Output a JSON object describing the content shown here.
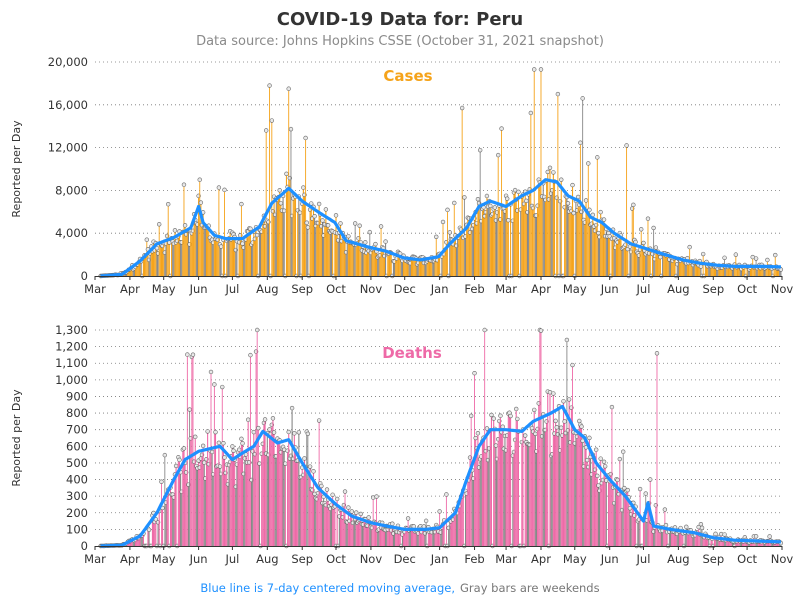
{
  "title": "COVID-19 Data for: Peru",
  "subtitle": "Data source: Johns Hopkins CSSE (October 31, 2021 snapshot)",
  "footnote": {
    "blue_part": "Blue line is 7-day centered moving average,",
    "gray_part": "Gray bars are weekends"
  },
  "colors": {
    "cases_bar": "#f5a31a",
    "deaths_bar": "#ee6aa7",
    "weekend_bar": "#888888",
    "moving_avg": "#1e90ff",
    "cases_title": "#f5a31a",
    "deaths_title": "#ee6aa7"
  },
  "chart_data": [
    {
      "type": "bar",
      "panel": "Cases",
      "ylabel": "Reported per Day",
      "ylim": [
        0,
        20000
      ],
      "yticks": [
        "0",
        "4,000",
        "8,000",
        "12,000",
        "16,000",
        "20,000"
      ],
      "x_tick_labels": [
        "Mar",
        "Apr",
        "May",
        "Jun",
        "Jul",
        "Aug",
        "Sep",
        "Oct",
        "Nov",
        "Dec",
        "Jan",
        "Feb",
        "Mar",
        "Apr",
        "May",
        "Jun",
        "Jul",
        "Aug",
        "Sep",
        "Oct",
        "Nov"
      ],
      "date_range": [
        "2020-03-06",
        "2021-10-31"
      ],
      "moving_average_anchors": [
        [
          "2020-03-06",
          0
        ],
        [
          "2020-03-25",
          150
        ],
        [
          "2020-04-10",
          1400
        ],
        [
          "2020-04-25",
          3000
        ],
        [
          "2020-05-10",
          3600
        ],
        [
          "2020-05-25",
          4500
        ],
        [
          "2020-06-01",
          6500
        ],
        [
          "2020-06-05",
          5000
        ],
        [
          "2020-06-15",
          3800
        ],
        [
          "2020-06-25",
          3500
        ],
        [
          "2020-07-10",
          3500
        ],
        [
          "2020-07-25",
          4600
        ],
        [
          "2020-08-05",
          6800
        ],
        [
          "2020-08-20",
          8200
        ],
        [
          "2020-09-01",
          7000
        ],
        [
          "2020-09-15",
          6000
        ],
        [
          "2020-09-30",
          5000
        ],
        [
          "2020-10-10",
          3300
        ],
        [
          "2020-10-30",
          2700
        ],
        [
          "2020-11-15",
          2300
        ],
        [
          "2020-11-30",
          1700
        ],
        [
          "2020-12-15",
          1500
        ],
        [
          "2020-12-31",
          1800
        ],
        [
          "2021-01-10",
          3000
        ],
        [
          "2021-01-25",
          4500
        ],
        [
          "2021-02-05",
          6500
        ],
        [
          "2021-02-15",
          7000
        ],
        [
          "2021-03-01",
          6500
        ],
        [
          "2021-03-15",
          7500
        ],
        [
          "2021-03-25",
          8000
        ],
        [
          "2021-04-05",
          9000
        ],
        [
          "2021-04-15",
          8800
        ],
        [
          "2021-04-25",
          7500
        ],
        [
          "2021-05-05",
          7000
        ],
        [
          "2021-05-15",
          5500
        ],
        [
          "2021-05-25",
          5000
        ],
        [
          "2021-06-05",
          4000
        ],
        [
          "2021-06-20",
          3000
        ],
        [
          "2021-07-05",
          2500
        ],
        [
          "2021-07-20",
          2000
        ],
        [
          "2021-08-05",
          1500
        ],
        [
          "2021-08-20",
          1200
        ],
        [
          "2021-09-05",
          1000
        ],
        [
          "2021-09-20",
          900
        ],
        [
          "2021-10-15",
          900
        ],
        [
          "2021-10-31",
          850
        ]
      ],
      "notable_daily_values": [
        [
          "2020-06-02",
          9000
        ],
        [
          "2020-07-31",
          13600
        ],
        [
          "2020-08-03",
          17800
        ],
        [
          "2020-09-04",
          12900
        ],
        [
          "2021-01-21",
          15700
        ],
        [
          "2021-03-26",
          19300
        ],
        [
          "2021-04-01",
          19300
        ],
        [
          "2021-04-16",
          17000
        ],
        [
          "2021-05-08",
          16600
        ],
        [
          "2021-06-16",
          12200
        ]
      ]
    },
    {
      "type": "bar",
      "panel": "Deaths",
      "ylabel": "Reported per Day",
      "ylim": [
        0,
        1300
      ],
      "yticks": [
        "0",
        "100",
        "200",
        "300",
        "400",
        "500",
        "600",
        "700",
        "800",
        "900",
        "1,000",
        "1,100",
        "1,200",
        "1,300"
      ],
      "x_tick_labels": [
        "Mar",
        "Apr",
        "May",
        "Jun",
        "Jul",
        "Aug",
        "Sep",
        "Oct",
        "Nov",
        "Dec",
        "Jan",
        "Feb",
        "Mar",
        "Apr",
        "May",
        "Jun",
        "Jul",
        "Aug",
        "Sep",
        "Oct",
        "Nov"
      ],
      "date_range": [
        "2020-03-06",
        "2021-10-31"
      ],
      "moving_average_anchors": [
        [
          "2020-03-06",
          0
        ],
        [
          "2020-03-25",
          5
        ],
        [
          "2020-04-10",
          60
        ],
        [
          "2020-04-25",
          200
        ],
        [
          "2020-05-10",
          400
        ],
        [
          "2020-05-20",
          520
        ],
        [
          "2020-06-01",
          570
        ],
        [
          "2020-06-20",
          600
        ],
        [
          "2020-07-01",
          520
        ],
        [
          "2020-07-10",
          560
        ],
        [
          "2020-07-20",
          600
        ],
        [
          "2020-07-28",
          690
        ],
        [
          "2020-08-10",
          620
        ],
        [
          "2020-08-20",
          640
        ],
        [
          "2020-09-01",
          500
        ],
        [
          "2020-09-15",
          350
        ],
        [
          "2020-10-01",
          250
        ],
        [
          "2020-10-15",
          180
        ],
        [
          "2020-11-01",
          140
        ],
        [
          "2020-11-15",
          120
        ],
        [
          "2020-12-01",
          100
        ],
        [
          "2020-12-20",
          100
        ],
        [
          "2021-01-01",
          110
        ],
        [
          "2021-01-15",
          200
        ],
        [
          "2021-01-25",
          400
        ],
        [
          "2021-02-05",
          600
        ],
        [
          "2021-02-15",
          700
        ],
        [
          "2021-03-01",
          700
        ],
        [
          "2021-03-15",
          690
        ],
        [
          "2021-03-25",
          750
        ],
        [
          "2021-04-10",
          800
        ],
        [
          "2021-04-20",
          840
        ],
        [
          "2021-05-01",
          700
        ],
        [
          "2021-05-10",
          650
        ],
        [
          "2021-05-20",
          500
        ],
        [
          "2021-06-01",
          400
        ],
        [
          "2021-06-15",
          300
        ],
        [
          "2021-07-01",
          150
        ],
        [
          "2021-07-05",
          260
        ],
        [
          "2021-07-10",
          120
        ],
        [
          "2021-07-25",
          100
        ],
        [
          "2021-08-15",
          80
        ],
        [
          "2021-09-01",
          50
        ],
        [
          "2021-09-20",
          35
        ],
        [
          "2021-10-10",
          30
        ],
        [
          "2021-10-31",
          25
        ]
      ],
      "notable_daily_values": [
        [
          "2020-07-15",
          760
        ],
        [
          "2020-07-22",
          1170
        ],
        [
          "2020-08-23",
          830
        ],
        [
          "2021-04-24",
          1240
        ],
        [
          "2021-07-13",
          1160
        ]
      ]
    }
  ]
}
